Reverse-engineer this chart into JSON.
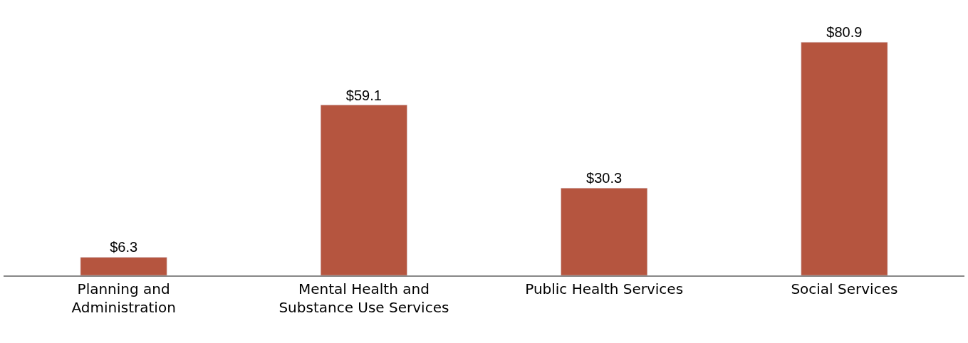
{
  "chart_data": {
    "type": "bar",
    "categories": [
      "Planning and\nAdministration",
      "Mental Health and\nSubstance Use Services",
      "Public Health Services",
      "Social Services"
    ],
    "values": [
      6.3,
      59.1,
      30.3,
      80.9
    ],
    "value_labels": [
      "$6.3",
      "$59.1",
      "$30.3",
      "$80.9"
    ],
    "color": "#b5553f",
    "legend": false
  }
}
